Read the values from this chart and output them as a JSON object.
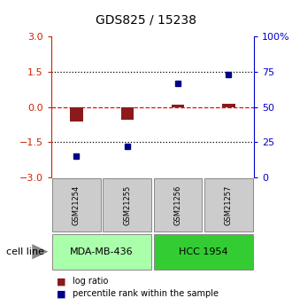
{
  "title": "GDS825 / 15238",
  "samples": [
    "GSM21254",
    "GSM21255",
    "GSM21256",
    "GSM21257"
  ],
  "log_ratio": [
    -0.6,
    -0.55,
    0.12,
    0.15
  ],
  "percentile_rank": [
    15,
    22,
    67,
    73
  ],
  "cell_lines": [
    {
      "label": "MDA-MB-436",
      "samples": [
        0,
        1
      ],
      "color": "#aaffaa"
    },
    {
      "label": "HCC 1954",
      "samples": [
        2,
        3
      ],
      "color": "#33cc33"
    }
  ],
  "ylim_left": [
    -3,
    3
  ],
  "ylim_right": [
    0,
    100
  ],
  "yticks_left": [
    -3,
    -1.5,
    0,
    1.5,
    3
  ],
  "yticks_right": [
    0,
    25,
    50,
    75,
    100
  ],
  "hlines_dotted": [
    -1.5,
    1.5
  ],
  "hline_dashed": 0,
  "bar_color": "#8b1a1a",
  "dot_color": "#00008b",
  "legend_labels": [
    "log ratio",
    "percentile rank within the sample"
  ],
  "cell_line_label": "cell line",
  "gsm_box_color": "#cccccc",
  "left_tick_color": "#cc2200",
  "right_tick_color": "#0000cc",
  "bar_width": 0.25
}
